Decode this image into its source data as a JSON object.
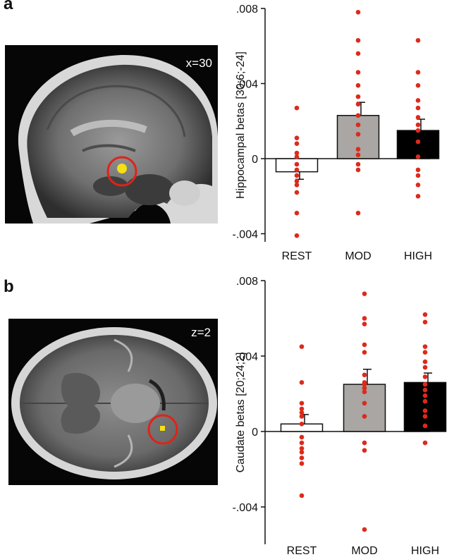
{
  "panels": [
    {
      "letter": "a",
      "slice_label": "x=30",
      "ylabel": "Hippocampal betas [30;6;-24]"
    },
    {
      "letter": "b",
      "slice_label": "z=2",
      "ylabel": "Caudate betas [20;24;2]"
    }
  ],
  "colors": {
    "points": "#dd2a1b",
    "highlight_circle": "#e02318",
    "activation": "#f5e013",
    "bar_rest": "#ffffff",
    "bar_mod": "#a9a6a3",
    "bar_high": "#000000"
  },
  "chart_data": [
    {
      "type": "bar",
      "title": "",
      "xlabel": "",
      "ylabel": "Hippocampal betas [30;6;-24]",
      "categories": [
        "REST",
        "MOD",
        "HIGH"
      ],
      "values": [
        -0.0007,
        0.0023,
        0.0015
      ],
      "errors": [
        0.0004,
        0.0007,
        0.0006
      ],
      "ylim": [
        -0.0043,
        0.008
      ],
      "yticks": [
        -0.004,
        0,
        0.004,
        0.008
      ],
      "ytick_labels": [
        "-.004",
        "0",
        ".004",
        ".008"
      ],
      "bar_colors": [
        "#ffffff",
        "#a9a6a3",
        "#000000"
      ],
      "points": [
        [
          0.0027,
          0.0011,
          0.0008,
          0.0003,
          0.0001,
          -0.0003,
          -0.0006,
          -0.0009,
          -0.0012,
          -0.0014,
          -0.0018,
          -0.0029,
          -0.0041
        ],
        [
          0.0078,
          0.0063,
          0.0056,
          0.0046,
          0.0039,
          0.0033,
          0.0029,
          0.0023,
          0.0018,
          0.0013,
          0.0005,
          0.0002,
          -0.0003,
          -0.0006,
          -0.0029
        ],
        [
          0.0063,
          0.0046,
          0.0039,
          0.0031,
          0.0027,
          0.0022,
          0.0018,
          0.0015,
          0.0009,
          0.0001,
          -0.0006,
          -0.0009,
          -0.0014,
          -0.002
        ]
      ]
    },
    {
      "type": "bar",
      "title": "",
      "xlabel": "",
      "ylabel": "Caudate betas [20;24;2]",
      "categories": [
        "REST",
        "MOD",
        "HIGH"
      ],
      "values": [
        0.0004,
        0.0025,
        0.0026
      ],
      "errors": [
        0.0005,
        0.0008,
        0.0005
      ],
      "ylim": [
        -0.0056,
        0.008
      ],
      "yticks": [
        -0.004,
        0,
        0.004,
        0.008
      ],
      "ytick_labels": [
        "-.004",
        "0",
        ".004",
        ".008"
      ],
      "bar_colors": [
        "#ffffff",
        "#a9a6a3",
        "#000000"
      ],
      "points": [
        [
          0.0045,
          0.0026,
          0.0015,
          0.0012,
          0.001,
          0.0008,
          0.0004,
          -0.0003,
          -0.0006,
          -0.0009,
          -0.0011,
          -0.0014,
          -0.0017,
          -0.0034
        ],
        [
          0.0073,
          0.006,
          0.0057,
          0.0046,
          0.0042,
          0.003,
          0.0026,
          0.0025,
          0.0023,
          0.0021,
          0.0015,
          0.0008,
          -0.0006,
          -0.001,
          -0.0052
        ],
        [
          0.0062,
          0.0058,
          0.0045,
          0.0042,
          0.0037,
          0.0034,
          0.0029,
          0.0025,
          0.0022,
          0.0019,
          0.0016,
          0.0011,
          0.0008,
          0.0003,
          -0.0006
        ]
      ]
    }
  ]
}
